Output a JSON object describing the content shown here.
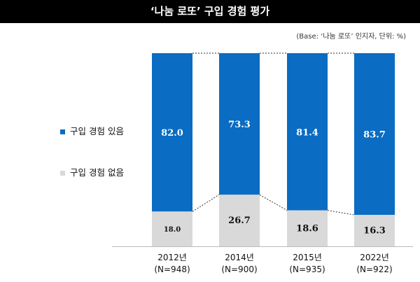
{
  "chart_data": {
    "type": "bar",
    "stacked": true,
    "title": "‘나눔 로또’ 구입 경험 평가",
    "note": "(Base: ‘나눔 로또’ 인지자, 단위: %)",
    "categories": [
      "2012년",
      "2014년",
      "2015년",
      "2022년"
    ],
    "sample_sizes": [
      "(N=948)",
      "(N=900)",
      "(N=935)",
      "(N=922)"
    ],
    "series": [
      {
        "name": "구입 경험 없음",
        "values": [
          18.0,
          26.7,
          18.6,
          16.3
        ],
        "labels": [
          "18.0",
          "26.7",
          "18.6",
          "16.3"
        ],
        "color": "#d9d9d9"
      },
      {
        "name": "구입 경험 있음",
        "values": [
          82.0,
          73.3,
          81.4,
          83.7
        ],
        "labels": [
          "82.0",
          "73.3",
          "81.4",
          "83.7"
        ],
        "color": "#0a6cc2"
      }
    ],
    "ylim": [
      0,
      100
    ],
    "legend_position": "left",
    "connector_lines": "dashed"
  }
}
